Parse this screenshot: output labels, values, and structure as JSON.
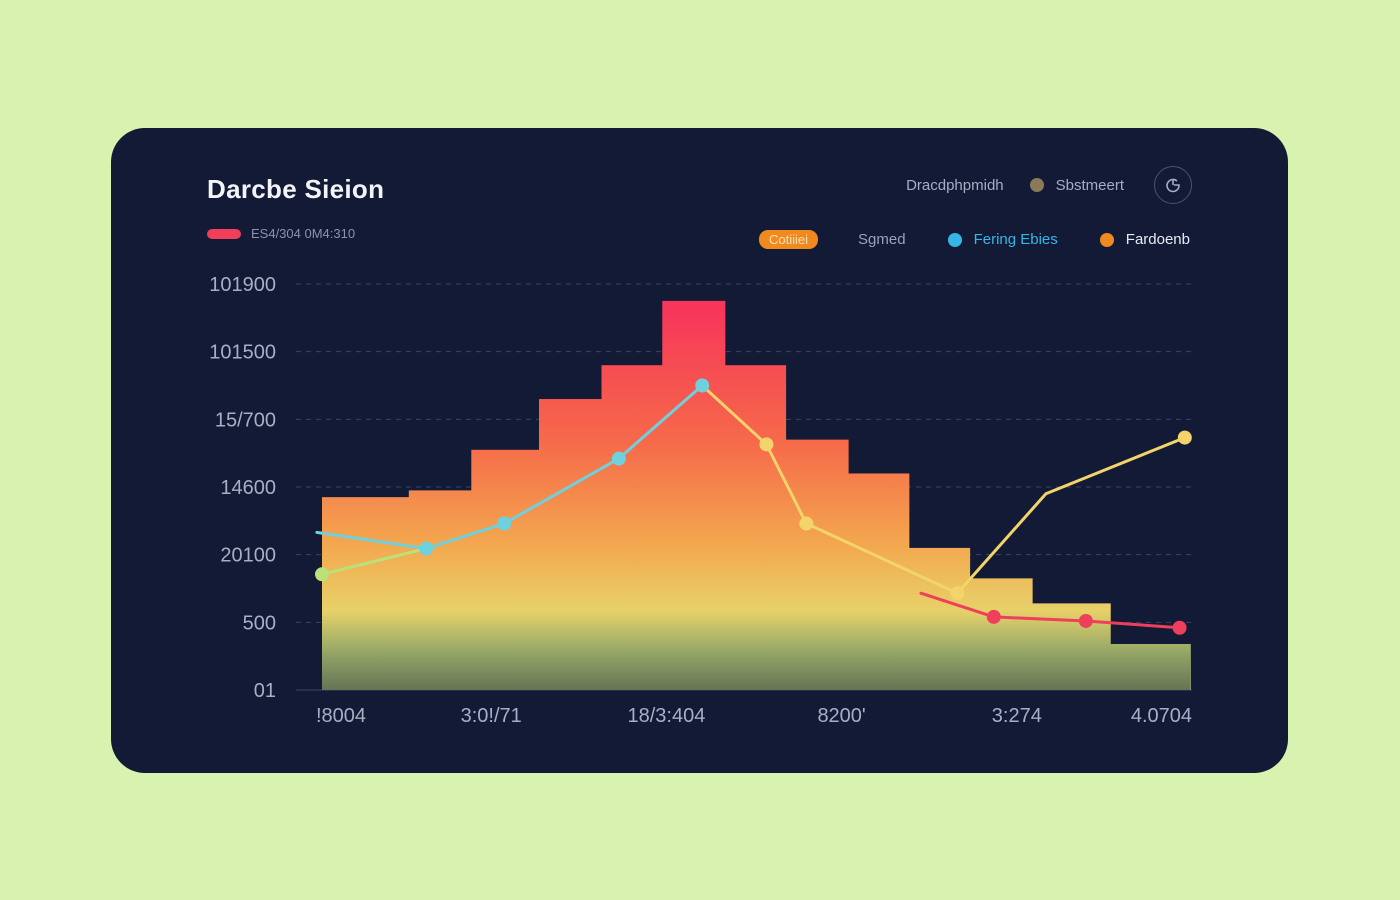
{
  "title": "Darcbe Sieion",
  "subtitle": "ES4/304 0M4:310",
  "header_right": {
    "label_1": "Dracdphpmidh",
    "label_2": "Sbstmeert",
    "icon": "settings-circle-icon"
  },
  "legend": [
    {
      "label": "Cotiiiei",
      "style": "pill",
      "color": "#f08a1e"
    },
    {
      "label": "Sgmed",
      "style": "text",
      "color": "#9aa1b8"
    },
    {
      "label": "Fering Ebies",
      "style": "dot",
      "color": "#34b6e6"
    },
    {
      "label": "Fardoenb",
      "style": "dot",
      "color": "#f08a1e"
    }
  ],
  "colors": {
    "background": "#d8f2b0",
    "card": "#121a36",
    "cyan": "#6fd0de",
    "yellow": "#f2d46a",
    "red": "#ef3f5b",
    "green_marker": "#b9e27a"
  },
  "chart_data": {
    "type": "area",
    "title": "Darcbe Sieion",
    "y_tick_labels": [
      "01",
      "500",
      "20100",
      "14600",
      "15/700",
      "101500",
      "101900"
    ],
    "ylim": [
      0,
      6
    ],
    "x_tick_labels": [
      "!8004",
      "3:0!/71",
      "18/3:404",
      "8200'",
      "3:274",
      "4.0704"
    ],
    "xlim": [
      0,
      5
    ],
    "grid": true,
    "series": [
      {
        "name": "Stepped area",
        "kind": "step-area",
        "steps": [
          {
            "x0": 0.0,
            "x1": 0.5,
            "y": 2.85
          },
          {
            "x0": 0.5,
            "x1": 0.86,
            "y": 2.95
          },
          {
            "x0": 0.86,
            "x1": 1.25,
            "y": 3.55
          },
          {
            "x0": 1.25,
            "x1": 1.61,
            "y": 4.3
          },
          {
            "x0": 1.61,
            "x1": 1.96,
            "y": 4.8
          },
          {
            "x0": 1.96,
            "x1": 2.32,
            "y": 5.75
          },
          {
            "x0": 2.32,
            "x1": 2.67,
            "y": 4.8
          },
          {
            "x0": 2.67,
            "x1": 3.03,
            "y": 3.7
          },
          {
            "x0": 3.03,
            "x1": 3.38,
            "y": 3.2
          },
          {
            "x0": 3.38,
            "x1": 3.73,
            "y": 2.1
          },
          {
            "x0": 3.73,
            "x1": 4.09,
            "y": 1.65
          },
          {
            "x0": 4.09,
            "x1": 4.54,
            "y": 1.28
          },
          {
            "x0": 4.54,
            "x1": 5.0,
            "y": 0.68
          }
        ]
      },
      {
        "name": "Cyan",
        "color": "#6fd0de",
        "points": [
          [
            -0.03,
            2.33
          ],
          [
            0.6,
            2.09
          ],
          [
            1.05,
            2.46
          ],
          [
            1.71,
            3.42
          ],
          [
            2.19,
            4.5
          ]
        ],
        "markers": [
          1,
          2,
          3,
          4
        ]
      },
      {
        "name": "Yellow",
        "color": "#f2d46a",
        "points": [
          [
            2.19,
            4.5
          ],
          [
            2.56,
            3.63
          ],
          [
            2.79,
            2.46
          ],
          [
            3.66,
            1.43
          ],
          [
            4.17,
            2.9
          ],
          [
            4.97,
            3.73
          ]
        ],
        "markers": [
          1,
          2,
          3,
          5
        ]
      },
      {
        "name": "Red",
        "color": "#ef3f5b",
        "points": [
          [
            3.45,
            1.43
          ],
          [
            3.87,
            1.08
          ],
          [
            4.4,
            1.02
          ],
          [
            4.94,
            0.92
          ]
        ],
        "markers": [
          1,
          2,
          3
        ]
      },
      {
        "name": "Green start",
        "color": "#b9e27a",
        "points": [
          [
            0.0,
            1.71
          ],
          [
            0.6,
            2.09
          ]
        ],
        "markers": [
          0
        ]
      }
    ]
  }
}
